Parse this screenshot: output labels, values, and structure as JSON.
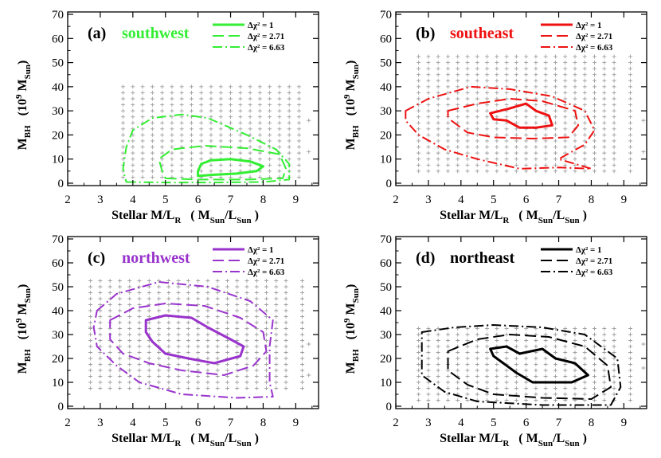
{
  "chart_data": [
    {
      "type": "contour",
      "panel_label": "(a)",
      "region": "southwest",
      "color": "#33ee33",
      "xlabel_main": "Stellar M/L",
      "xlabel_sub": "R",
      "xlabel_unit": "( M",
      "xlabel_unit_sub1": "Sun",
      "xlabel_unit_mid": "/L",
      "xlabel_unit_sub2": "Sun",
      "xlabel_unit_end": " )",
      "ylabel_main": "M",
      "ylabel_sub": "BH",
      "ylabel_unit": "(10",
      "ylabel_unit_sup": "9",
      "ylabel_unit_mid": " M",
      "ylabel_unit_sub": "Sun",
      "ylabel_unit_end": ")",
      "xlim": [
        2,
        9.7
      ],
      "ylim": [
        -1,
        71
      ],
      "xticks": [
        "2",
        "3",
        "4",
        "5",
        "6",
        "7",
        "8",
        "9"
      ],
      "yticks": [
        "0",
        "10",
        "20",
        "30",
        "40",
        "50",
        "60",
        "70"
      ],
      "legend": [
        {
          "label": "Δχ² = 1",
          "style": "solid"
        },
        {
          "label": "Δχ² = 2.71",
          "style": "dashed"
        },
        {
          "label": "Δχ² = 6.63",
          "style": "dashdot"
        }
      ],
      "grid_points": {
        "x": [
          3.7,
          4.0,
          4.3,
          4.6,
          4.9,
          5.2,
          5.5,
          5.8,
          6.1,
          6.4,
          6.7,
          7.0,
          7.3,
          7.6,
          7.9,
          8.2,
          8.5,
          8.8,
          9.1
        ],
        "y": [
          2.5,
          5,
          7.5,
          10,
          12.5,
          15,
          17.5,
          20,
          22.5,
          25,
          27.5,
          30,
          32.5,
          35,
          37.5,
          40
        ],
        "extra": [
          [
            9.4,
            26
          ],
          [
            9.4,
            13
          ]
        ]
      },
      "contours": [
        {
          "level": 1,
          "points": [
            [
              6.0,
              3
            ],
            [
              6.5,
              3.5
            ],
            [
              7.2,
              4
            ],
            [
              7.8,
              5
            ],
            [
              8.0,
              7
            ],
            [
              7.6,
              9
            ],
            [
              7.0,
              10
            ],
            [
              6.4,
              9.5
            ],
            [
              6.1,
              8
            ],
            [
              6.0,
              5
            ]
          ]
        },
        {
          "level": 2.71,
          "points": [
            [
              5.0,
              2
            ],
            [
              6.0,
              1.5
            ],
            [
              7.5,
              1.5
            ],
            [
              8.6,
              2
            ],
            [
              8.7,
              6
            ],
            [
              8.5,
              12
            ],
            [
              7.5,
              14.5
            ],
            [
              6.2,
              15.5
            ],
            [
              5.2,
              14
            ],
            [
              4.8,
              10
            ],
            [
              4.9,
              5
            ]
          ]
        },
        {
          "level": 6.63,
          "points": [
            [
              3.8,
              0.5
            ],
            [
              5.0,
              0.3
            ],
            [
              6.5,
              0.3
            ],
            [
              8.0,
              0.5
            ],
            [
              8.8,
              1.5
            ],
            [
              8.8,
              8
            ],
            [
              8.4,
              14
            ],
            [
              7.5,
              20
            ],
            [
              6.3,
              27
            ],
            [
              5.5,
              28.5
            ],
            [
              4.6,
              27
            ],
            [
              4.0,
              22
            ],
            [
              3.8,
              15
            ],
            [
              3.7,
              6
            ]
          ]
        }
      ]
    },
    {
      "type": "contour",
      "panel_label": "(b)",
      "region": "southeast",
      "color": "#ee1111",
      "xlabel_main": "Stellar M/L",
      "xlabel_sub": "R",
      "xlabel_unit": "( M",
      "xlabel_unit_sub1": "Sun",
      "xlabel_unit_mid": "/L",
      "xlabel_unit_sub2": "Sun",
      "xlabel_unit_end": " )",
      "ylabel_main": "M",
      "ylabel_sub": "BH",
      "ylabel_unit": "(10",
      "ylabel_unit_sup": "9",
      "ylabel_unit_mid": " M",
      "ylabel_unit_sub": "Sun",
      "ylabel_unit_end": ")",
      "xlim": [
        2,
        9.7
      ],
      "ylim": [
        -1,
        71
      ],
      "xticks": [
        "2",
        "3",
        "4",
        "5",
        "6",
        "7",
        "8",
        "9"
      ],
      "yticks": [
        "0",
        "10",
        "20",
        "30",
        "40",
        "50",
        "60",
        "70"
      ],
      "legend": [
        {
          "label": "Δχ² = 1",
          "style": "solid"
        },
        {
          "label": "Δχ² = 2.71",
          "style": "dashed"
        },
        {
          "label": "Δχ² = 6.63",
          "style": "dashdot"
        }
      ],
      "grid_points": {
        "x": [
          2.7,
          3.0,
          3.3,
          3.6,
          3.9,
          4.2,
          4.5,
          4.8,
          5.1,
          5.4,
          5.7,
          6.0,
          6.3,
          6.6,
          6.9,
          7.2,
          7.5,
          7.8,
          8.1,
          8.4,
          8.7,
          9.2
        ],
        "y": [
          5,
          7.5,
          10,
          12.5,
          15,
          17.5,
          20,
          22.5,
          25,
          27.5,
          30,
          32.5,
          35,
          37.5,
          40,
          42.5,
          45,
          47.5,
          50,
          52.5
        ],
        "extra": [
          [
            9.6,
            26
          ],
          [
            9.6,
            13
          ]
        ]
      },
      "contours": [
        {
          "level": 1,
          "points": [
            [
              4.9,
              29
            ],
            [
              5.5,
              31
            ],
            [
              6.0,
              33
            ],
            [
              6.3,
              30
            ],
            [
              6.7,
              28
            ],
            [
              6.8,
              24
            ],
            [
              6.3,
              23
            ],
            [
              5.8,
              23
            ],
            [
              5.4,
              26
            ],
            [
              5.0,
              26.5
            ]
          ]
        },
        {
          "level": 2.71,
          "points": [
            [
              3.6,
              30
            ],
            [
              4.5,
              33
            ],
            [
              5.5,
              35
            ],
            [
              6.5,
              34
            ],
            [
              7.5,
              30
            ],
            [
              7.6,
              24
            ],
            [
              7.3,
              19
            ],
            [
              6.2,
              18.5
            ],
            [
              5.0,
              19
            ],
            [
              4.2,
              21
            ],
            [
              3.6,
              27
            ]
          ]
        },
        {
          "level": 6.63,
          "points": [
            [
              2.3,
              30
            ],
            [
              3.0,
              35
            ],
            [
              4.3,
              40
            ],
            [
              5.5,
              39
            ],
            [
              6.8,
              36
            ],
            [
              7.8,
              30
            ],
            [
              8.1,
              22
            ],
            [
              7.8,
              16
            ],
            [
              7.0,
              10
            ],
            [
              8.0,
              6
            ],
            [
              7.0,
              6.5
            ],
            [
              5.8,
              6
            ],
            [
              4.5,
              10
            ],
            [
              3.5,
              14
            ],
            [
              2.7,
              20
            ],
            [
              2.3,
              26
            ]
          ]
        }
      ]
    },
    {
      "type": "contour",
      "panel_label": "(c)",
      "region": "northwest",
      "color": "#9933cc",
      "xlabel_main": "Stellar M/L",
      "xlabel_sub": "R",
      "xlabel_unit": "( M",
      "xlabel_unit_sub1": "Sun",
      "xlabel_unit_mid": "/L",
      "xlabel_unit_sub2": "Sun",
      "xlabel_unit_end": " )",
      "ylabel_main": "M",
      "ylabel_sub": "BH",
      "ylabel_unit": "(10",
      "ylabel_unit_sup": "9",
      "ylabel_unit_mid": " M",
      "ylabel_unit_sub": "Sun",
      "ylabel_unit_end": ")",
      "xlim": [
        2,
        9.7
      ],
      "ylim": [
        -1,
        71
      ],
      "xticks": [
        "2",
        "3",
        "4",
        "5",
        "6",
        "7",
        "8",
        "9"
      ],
      "yticks": [
        "0",
        "10",
        "20",
        "30",
        "40",
        "50",
        "60",
        "70"
      ],
      "legend": [
        {
          "label": "Δχ² = 1",
          "style": "solid"
        },
        {
          "label": "Δχ² = 2.71",
          "style": "dashed"
        },
        {
          "label": "Δχ² = 6.63",
          "style": "dashdot"
        }
      ],
      "grid_points": {
        "x": [
          2.7,
          3.0,
          3.3,
          3.6,
          3.9,
          4.2,
          4.5,
          4.8,
          5.1,
          5.4,
          5.7,
          6.0,
          6.3,
          6.6,
          6.9,
          7.2,
          7.5,
          7.8,
          8.1,
          8.4,
          8.7,
          9.2
        ],
        "y": [
          7.5,
          10,
          12.5,
          15,
          17.5,
          20,
          22.5,
          25,
          27.5,
          30,
          32.5,
          35,
          37.5,
          40,
          42.5,
          45,
          47.5,
          50,
          52.5
        ],
        "extra": [
          [
            9.4,
            26
          ],
          [
            9.4,
            13
          ],
          [
            2.7,
            33
          ]
        ]
      },
      "contours": [
        {
          "level": 1,
          "points": [
            [
              4.4,
              36
            ],
            [
              5.0,
              38
            ],
            [
              5.8,
              37
            ],
            [
              6.3,
              33
            ],
            [
              7.0,
              28
            ],
            [
              7.4,
              25
            ],
            [
              7.3,
              21
            ],
            [
              6.5,
              18
            ],
            [
              5.7,
              20
            ],
            [
              5.0,
              22
            ],
            [
              4.6,
              27
            ],
            [
              4.4,
              31
            ]
          ]
        },
        {
          "level": 2.71,
          "points": [
            [
              3.3,
              36
            ],
            [
              4.0,
              41
            ],
            [
              5.0,
              43
            ],
            [
              6.2,
              42
            ],
            [
              7.3,
              37
            ],
            [
              8.0,
              31
            ],
            [
              8.1,
              23
            ],
            [
              7.7,
              17
            ],
            [
              6.8,
              13
            ],
            [
              5.5,
              15
            ],
            [
              4.5,
              18
            ],
            [
              3.7,
              22
            ],
            [
              3.3,
              28
            ]
          ]
        },
        {
          "level": 6.63,
          "points": [
            [
              2.9,
              40
            ],
            [
              3.5,
              47
            ],
            [
              4.8,
              52
            ],
            [
              6.3,
              50
            ],
            [
              7.6,
              44
            ],
            [
              8.3,
              36
            ],
            [
              8.2,
              25
            ],
            [
              8.2,
              10
            ],
            [
              8.3,
              4
            ],
            [
              7.2,
              3.5
            ],
            [
              5.5,
              5
            ],
            [
              4.2,
              10
            ],
            [
              3.5,
              17
            ],
            [
              2.9,
              25
            ],
            [
              2.8,
              33
            ]
          ]
        }
      ]
    },
    {
      "type": "contour",
      "panel_label": "(d)",
      "region": "northeast",
      "color": "#000000",
      "xlabel_main": "Stellar M/L",
      "xlabel_sub": "R",
      "xlabel_unit": "( M",
      "xlabel_unit_sub1": "Sun",
      "xlabel_unit_mid": "/L",
      "xlabel_unit_sub2": "Sun",
      "xlabel_unit_end": " )",
      "ylabel_main": "M",
      "ylabel_sub": "BH",
      "ylabel_unit": "(10",
      "ylabel_unit_sup": "9",
      "ylabel_unit_mid": " M",
      "ylabel_unit_sub": "Sun",
      "ylabel_unit_end": ")",
      "xlim": [
        2,
        9.7
      ],
      "ylim": [
        -1,
        71
      ],
      "xticks": [
        "2",
        "3",
        "4",
        "5",
        "6",
        "7",
        "8",
        "9"
      ],
      "yticks": [
        "0",
        "10",
        "20",
        "30",
        "40",
        "50",
        "60",
        "70"
      ],
      "legend": [
        {
          "label": "Δχ² = 1",
          "style": "solid"
        },
        {
          "label": "Δχ² = 2.71",
          "style": "dashed"
        },
        {
          "label": "Δχ² = 6.63",
          "style": "dashdot"
        }
      ],
      "grid_points": {
        "x": [
          2.7,
          3.0,
          3.3,
          3.6,
          3.9,
          4.2,
          4.5,
          4.8,
          5.1,
          5.4,
          5.7,
          6.0,
          6.3,
          6.6,
          6.9,
          7.2,
          7.5,
          7.8,
          8.1,
          8.4,
          8.7,
          9.2
        ],
        "y": [
          2.5,
          5,
          7.5,
          10,
          12.5,
          15,
          17.5,
          20,
          22.5,
          25,
          27.5,
          30,
          32.5
        ],
        "extra": [
          [
            9.6,
            26
          ],
          [
            9.6,
            16
          ]
        ]
      },
      "contours": [
        {
          "level": 1,
          "points": [
            [
              4.9,
              24
            ],
            [
              5.4,
              25
            ],
            [
              5.8,
              22
            ],
            [
              6.5,
              24
            ],
            [
              6.9,
              20
            ],
            [
              7.5,
              18
            ],
            [
              7.9,
              13
            ],
            [
              7.4,
              10
            ],
            [
              6.2,
              10
            ],
            [
              5.7,
              14
            ],
            [
              5.3,
              18
            ],
            [
              5.0,
              21
            ]
          ]
        },
        {
          "level": 2.71,
          "points": [
            [
              3.6,
              23
            ],
            [
              4.5,
              28
            ],
            [
              5.5,
              30
            ],
            [
              6.7,
              29
            ],
            [
              7.8,
              25
            ],
            [
              8.5,
              17
            ],
            [
              8.6,
              8
            ],
            [
              8.0,
              3
            ],
            [
              6.5,
              3.5
            ],
            [
              5.0,
              5
            ],
            [
              4.2,
              9
            ],
            [
              3.6,
              15
            ]
          ]
        },
        {
          "level": 6.63,
          "points": [
            [
              2.8,
              31
            ],
            [
              3.8,
              33
            ],
            [
              5.0,
              34
            ],
            [
              6.5,
              33
            ],
            [
              7.8,
              30
            ],
            [
              8.8,
              20
            ],
            [
              8.9,
              8
            ],
            [
              8.6,
              0.5
            ],
            [
              6.5,
              0.5
            ],
            [
              4.5,
              2
            ],
            [
              3.5,
              6
            ],
            [
              2.8,
              13
            ]
          ]
        }
      ]
    }
  ]
}
